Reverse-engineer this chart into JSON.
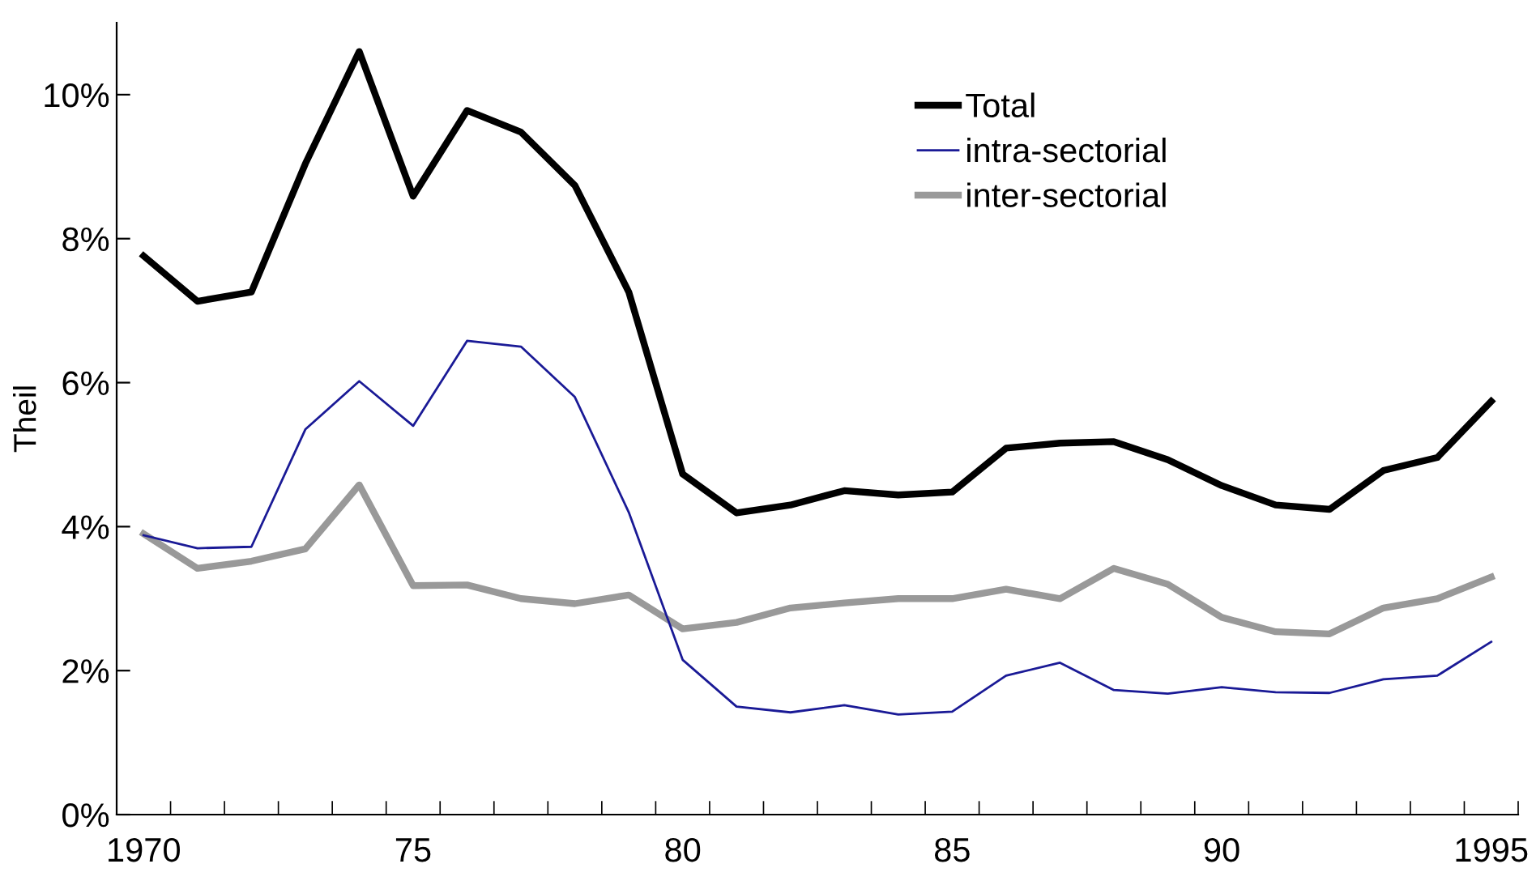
{
  "chart_data": {
    "type": "line",
    "ylabel": "Theil",
    "categories": [
      "1970",
      null,
      null,
      null,
      null,
      "75",
      null,
      null,
      null,
      null,
      "80",
      null,
      null,
      null,
      null,
      "85",
      null,
      null,
      null,
      null,
      "90",
      null,
      null,
      null,
      null,
      "1995"
    ],
    "series": [
      {
        "name": "Total",
        "color": "#000000",
        "values": [
          7.76,
          7.13,
          7.26,
          9.04,
          10.6,
          8.59,
          9.78,
          9.48,
          8.74,
          7.26,
          4.73,
          4.19,
          4.3,
          4.5,
          4.44,
          4.48,
          5.09,
          5.16,
          5.18,
          4.93,
          4.57,
          4.3,
          4.24,
          4.78,
          4.96,
          5.74
        ]
      },
      {
        "name": "intra-sectorial",
        "color": "#1a1a96",
        "values": [
          3.88,
          3.7,
          3.72,
          5.35,
          6.02,
          5.4,
          6.58,
          6.5,
          5.8,
          4.2,
          2.15,
          1.5,
          1.42,
          1.52,
          1.39,
          1.43,
          1.93,
          2.11,
          1.73,
          1.68,
          1.77,
          1.7,
          1.69,
          1.88,
          1.93,
          2.4
        ]
      },
      {
        "name": "inter-sectorial",
        "color": "#999999",
        "values": [
          3.9,
          3.42,
          3.52,
          3.69,
          4.58,
          3.18,
          3.19,
          3.0,
          2.93,
          3.05,
          2.58,
          2.67,
          2.87,
          2.94,
          3.0,
          3.0,
          3.13,
          3.0,
          3.42,
          3.2,
          2.74,
          2.54,
          2.51,
          2.87,
          3.0,
          3.3
        ]
      }
    ],
    "ylim": [
      0,
      11
    ],
    "yticks": [
      {
        "value": 0,
        "label": "0%"
      },
      {
        "value": 2,
        "label": "2%"
      },
      {
        "value": 4,
        "label": "4%"
      },
      {
        "value": 6,
        "label": "6%"
      },
      {
        "value": 8,
        "label": "8%"
      },
      {
        "value": 10,
        "label": "10%"
      }
    ],
    "grid": false,
    "legend": "top right",
    "marker": "none",
    "line_style": "solid"
  }
}
